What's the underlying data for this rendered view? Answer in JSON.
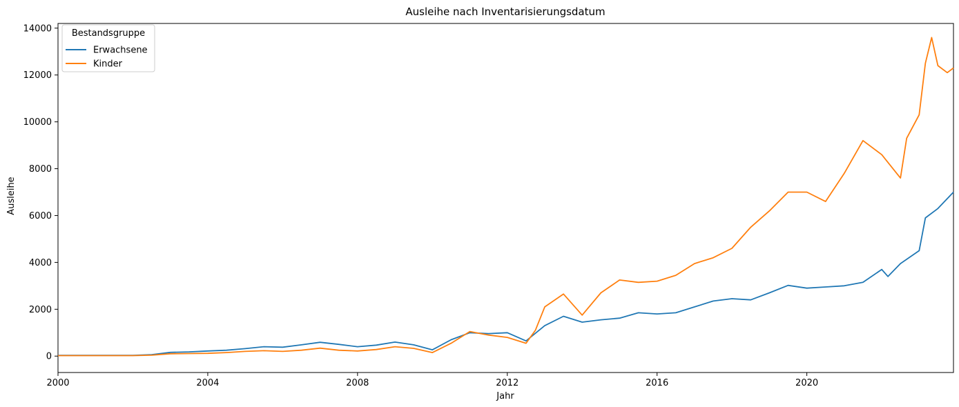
{
  "chart_data": {
    "type": "line",
    "title": "Ausleihe nach Inventarisierungsdatum",
    "xlabel": "Jahr",
    "ylabel": "Ausleihe",
    "xlim": [
      "2000-01",
      "2023-12"
    ],
    "ylim": [
      -700,
      14200
    ],
    "x_ticks": [
      {
        "label": "2000",
        "value": "2000-01"
      },
      {
        "label": "2004",
        "value": "2004-01"
      },
      {
        "label": "2008",
        "value": "2008-01"
      },
      {
        "label": "2012",
        "value": "2012-01"
      },
      {
        "label": "2016",
        "value": "2016-01"
      },
      {
        "label": "2020",
        "value": "2020-01"
      }
    ],
    "y_ticks": [
      0,
      2000,
      4000,
      6000,
      8000,
      10000,
      12000,
      14000
    ],
    "grid": false,
    "legend": {
      "title": "Bestandsgruppe",
      "placement": "top-left"
    },
    "series": [
      {
        "name": "Erwachsene",
        "color": "#1f77b4",
        "points": [
          [
            "2000-01",
            30
          ],
          [
            "2001-01",
            30
          ],
          [
            "2002-01",
            30
          ],
          [
            "2002-07",
            60
          ],
          [
            "2003-01",
            160
          ],
          [
            "2003-07",
            180
          ],
          [
            "2004-01",
            220
          ],
          [
            "2004-07",
            250
          ],
          [
            "2005-01",
            320
          ],
          [
            "2005-07",
            400
          ],
          [
            "2006-01",
            380
          ],
          [
            "2006-07",
            480
          ],
          [
            "2007-01",
            590
          ],
          [
            "2007-07",
            500
          ],
          [
            "2008-01",
            400
          ],
          [
            "2008-07",
            470
          ],
          [
            "2009-01",
            600
          ],
          [
            "2009-07",
            480
          ],
          [
            "2010-01",
            270
          ],
          [
            "2010-07",
            700
          ],
          [
            "2011-01",
            1000
          ],
          [
            "2011-07",
            960
          ],
          [
            "2012-01",
            1000
          ],
          [
            "2012-07",
            650
          ],
          [
            "2013-01",
            1300
          ],
          [
            "2013-07",
            1700
          ],
          [
            "2014-01",
            1450
          ],
          [
            "2014-07",
            1550
          ],
          [
            "2015-01",
            1620
          ],
          [
            "2015-07",
            1850
          ],
          [
            "2016-01",
            1800
          ],
          [
            "2016-07",
            1850
          ],
          [
            "2017-01",
            2100
          ],
          [
            "2017-07",
            2350
          ],
          [
            "2018-01",
            2450
          ],
          [
            "2018-07",
            2400
          ],
          [
            "2019-01",
            2700
          ],
          [
            "2019-07",
            3020
          ],
          [
            "2020-01",
            2900
          ],
          [
            "2020-07",
            2950
          ],
          [
            "2021-01",
            3000
          ],
          [
            "2021-07",
            3150
          ],
          [
            "2022-01",
            3700
          ],
          [
            "2022-03",
            3400
          ],
          [
            "2022-07",
            3950
          ],
          [
            "2023-01",
            4500
          ],
          [
            "2023-03",
            5900
          ],
          [
            "2023-07",
            6300
          ],
          [
            "2023-12",
            7000
          ]
        ]
      },
      {
        "name": "Kinder",
        "color": "#ff7f0e",
        "points": [
          [
            "2000-01",
            20
          ],
          [
            "2001-01",
            20
          ],
          [
            "2002-01",
            20
          ],
          [
            "2002-07",
            40
          ],
          [
            "2003-01",
            100
          ],
          [
            "2003-07",
            110
          ],
          [
            "2004-01",
            120
          ],
          [
            "2004-07",
            150
          ],
          [
            "2005-01",
            200
          ],
          [
            "2005-07",
            230
          ],
          [
            "2006-01",
            200
          ],
          [
            "2006-07",
            250
          ],
          [
            "2007-01",
            340
          ],
          [
            "2007-07",
            250
          ],
          [
            "2008-01",
            220
          ],
          [
            "2008-07",
            280
          ],
          [
            "2009-01",
            400
          ],
          [
            "2009-07",
            330
          ],
          [
            "2010-01",
            150
          ],
          [
            "2010-07",
            550
          ],
          [
            "2011-01",
            1050
          ],
          [
            "2011-07",
            900
          ],
          [
            "2012-01",
            800
          ],
          [
            "2012-07",
            550
          ],
          [
            "2012-10",
            1100
          ],
          [
            "2013-01",
            2100
          ],
          [
            "2013-07",
            2650
          ],
          [
            "2014-01",
            1750
          ],
          [
            "2014-07",
            2700
          ],
          [
            "2015-01",
            3250
          ],
          [
            "2015-07",
            3150
          ],
          [
            "2016-01",
            3200
          ],
          [
            "2016-07",
            3450
          ],
          [
            "2017-01",
            3950
          ],
          [
            "2017-07",
            4200
          ],
          [
            "2018-01",
            4600
          ],
          [
            "2018-07",
            5500
          ],
          [
            "2019-01",
            6200
          ],
          [
            "2019-07",
            7000
          ],
          [
            "2020-01",
            7000
          ],
          [
            "2020-07",
            6600
          ],
          [
            "2021-01",
            7800
          ],
          [
            "2021-07",
            9200
          ],
          [
            "2022-01",
            8600
          ],
          [
            "2022-07",
            7600
          ],
          [
            "2022-09",
            9300
          ],
          [
            "2023-01",
            10300
          ],
          [
            "2023-03",
            12500
          ],
          [
            "2023-05",
            13600
          ],
          [
            "2023-07",
            12400
          ],
          [
            "2023-10",
            12100
          ],
          [
            "2023-12",
            12300
          ]
        ]
      }
    ]
  }
}
